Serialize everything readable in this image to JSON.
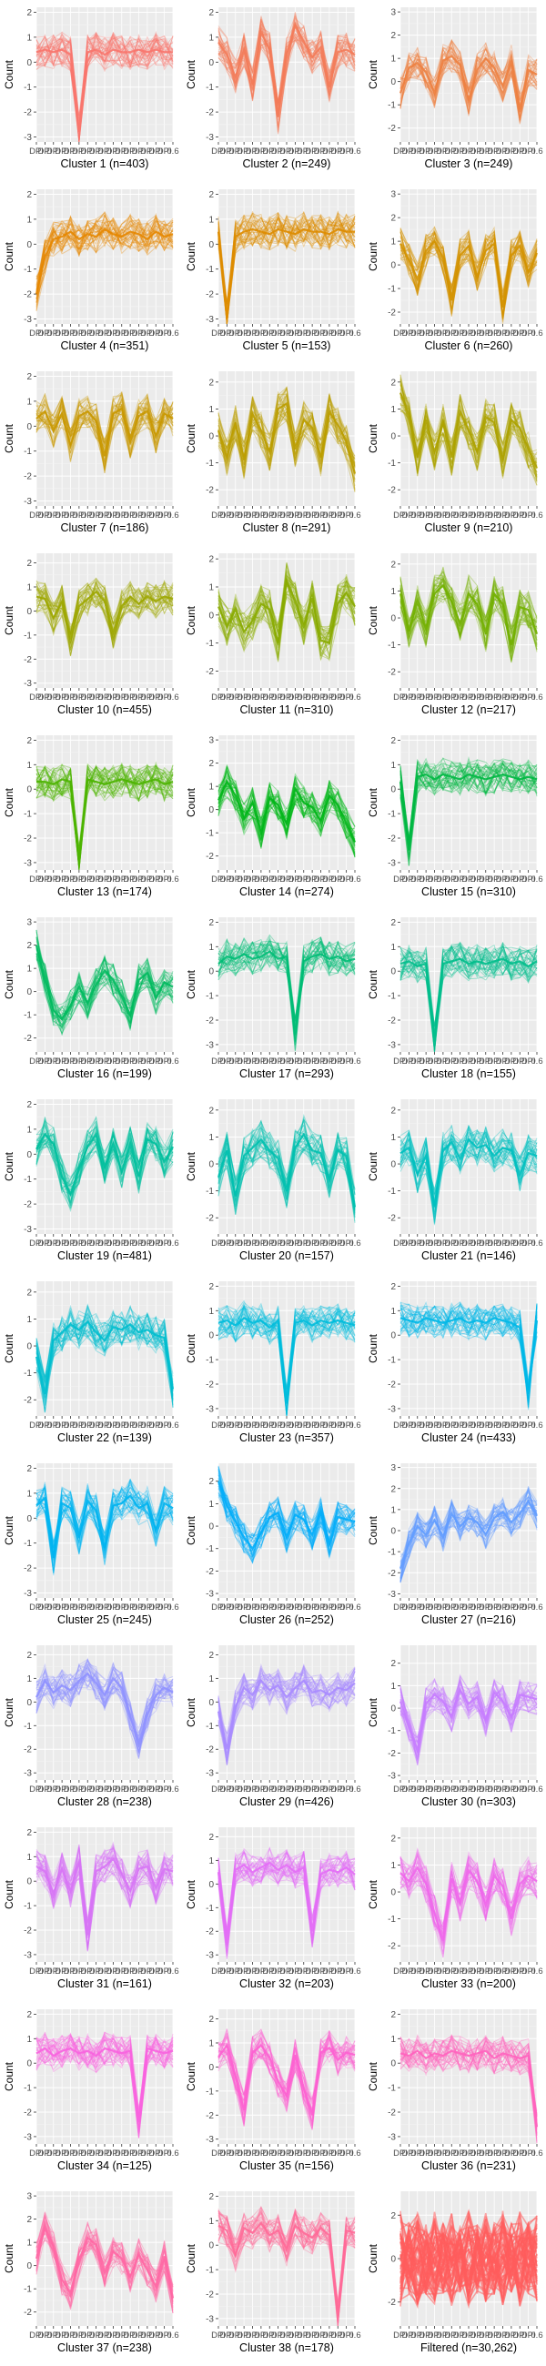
{
  "ylabel": "Count",
  "x_tick_labels": [
    "DPI",
    "DPI",
    "DPI",
    "DPI",
    "DPI",
    "DPI",
    "DPI",
    "DPI",
    "DPI",
    "DPI",
    "DPI",
    "DPI",
    "DPI",
    "DPI",
    "DPI",
    "DPI",
    "0.6"
  ],
  "chart_data": [
    {
      "type": "line",
      "title": "Cluster 1 (n=403)",
      "color": "#F8766D",
      "ylim": [
        -3.2,
        2.2
      ],
      "yticks": [
        -3,
        -2,
        -1,
        0,
        1,
        2
      ],
      "profile": [
        0.4,
        0.5,
        0.4,
        0.5,
        0.3,
        -2.8,
        0.4,
        0.5,
        0.3,
        0.5,
        0.4,
        0.4,
        0.5,
        0.4,
        0.5,
        0.4,
        0.4
      ]
    },
    {
      "type": "line",
      "title": "Cluster 2 (n=249)",
      "color": "#F37B59",
      "ylim": [
        -3.2,
        2.2
      ],
      "yticks": [
        -3,
        -2,
        -1,
        0,
        1,
        2
      ],
      "profile": [
        0.8,
        0.3,
        -0.6,
        0.5,
        -0.9,
        1.2,
        0.5,
        -2.2,
        0.3,
        1.5,
        0.8,
        0.2,
        0.6,
        -1.0,
        0.4,
        0.5,
        0.3
      ]
    },
    {
      "type": "line",
      "title": "Cluster 3 (n=249)",
      "color": "#ED8141",
      "ylim": [
        -2.6,
        3.2
      ],
      "yticks": [
        -2,
        -1,
        0,
        1,
        2,
        3
      ],
      "profile": [
        -0.5,
        0.6,
        0.8,
        0.4,
        -0.5,
        0.9,
        1.1,
        0.7,
        -0.8,
        0.5,
        1.0,
        0.6,
        -0.2,
        0.9,
        -1.2,
        0.5,
        0.3
      ]
    },
    {
      "type": "line",
      "title": "Cluster 4 (n=351)",
      "color": "#E58700",
      "ylim": [
        -3.2,
        2.2
      ],
      "yticks": [
        -3,
        -2,
        -1,
        0,
        1,
        2
      ],
      "profile": [
        -2.0,
        -0.5,
        0.2,
        0.3,
        0.5,
        0.2,
        0.4,
        0.3,
        0.6,
        0.4,
        0.3,
        0.5,
        0.4,
        0.2,
        0.5,
        0.3,
        0.4
      ]
    },
    {
      "type": "line",
      "title": "Cluster 5 (n=153)",
      "color": "#DE8C00",
      "ylim": [
        -3.2,
        2.2
      ],
      "yticks": [
        -3,
        -2,
        -1,
        0,
        1,
        2
      ],
      "profile": [
        0.5,
        -3.0,
        0.3,
        0.5,
        0.6,
        0.5,
        0.4,
        0.6,
        0.5,
        0.4,
        0.6,
        0.5,
        0.5,
        0.4,
        0.6,
        0.5,
        0.5
      ]
    },
    {
      "type": "line",
      "title": "Cluster 6 (n=260)",
      "color": "#D39200",
      "ylim": [
        -2.5,
        3.2
      ],
      "yticks": [
        -2,
        -1,
        0,
        1,
        2,
        3
      ],
      "profile": [
        0.9,
        0.2,
        -0.6,
        0.6,
        1.0,
        0.3,
        -1.5,
        0.4,
        0.8,
        -0.5,
        0.6,
        0.9,
        -1.8,
        0.4,
        0.8,
        -0.3,
        0.5
      ]
    },
    {
      "type": "line",
      "title": "Cluster 7 (n=186)",
      "color": "#C99800",
      "ylim": [
        -3.2,
        2.2
      ],
      "yticks": [
        -3,
        -2,
        -1,
        0,
        1,
        2
      ],
      "profile": [
        0.3,
        0.6,
        -0.2,
        0.5,
        -0.8,
        0.4,
        0.6,
        0.2,
        -1.2,
        0.5,
        0.7,
        -0.6,
        0.4,
        0.6,
        -0.4,
        0.5,
        0.3
      ]
    },
    {
      "type": "line",
      "title": "Cluster 8 (n=291)",
      "color": "#BB9D00",
      "ylim": [
        -2.6,
        2.4
      ],
      "yticks": [
        -2,
        -1,
        0,
        1,
        2
      ],
      "profile": [
        0.2,
        -0.8,
        0.5,
        -0.9,
        0.8,
        0.2,
        -0.6,
        1.0,
        1.2,
        -0.5,
        0.6,
        0.3,
        -0.8,
        0.9,
        0.4,
        -0.2,
        -1.4
      ]
    },
    {
      "type": "line",
      "title": "Cluster 9 (n=210)",
      "color": "#ADA200",
      "ylim": [
        -2.6,
        2.4
      ],
      "yticks": [
        -2,
        -1,
        0,
        1,
        2
      ],
      "profile": [
        1.6,
        0.8,
        -0.8,
        0.6,
        -0.6,
        0.5,
        -0.8,
        0.9,
        0.2,
        -0.6,
        0.7,
        0.5,
        -0.9,
        0.6,
        0.3,
        -0.5,
        -1.2
      ]
    },
    {
      "type": "line",
      "title": "Cluster 10 (n=455)",
      "color": "#9DA700",
      "ylim": [
        -3.2,
        2.4
      ],
      "yticks": [
        -3,
        -2,
        -1,
        0,
        1,
        2
      ],
      "profile": [
        0.6,
        0.5,
        -0.3,
        0.4,
        -1.2,
        0.2,
        0.5,
        0.8,
        0.4,
        -0.9,
        0.2,
        0.6,
        0.3,
        0.6,
        0.4,
        0.6,
        0.5
      ]
    },
    {
      "type": "line",
      "title": "Cluster 11 (n=310)",
      "color": "#8AAB00",
      "ylim": [
        -2.6,
        2.2
      ],
      "yticks": [
        -2,
        -1,
        0,
        1,
        2
      ],
      "profile": [
        0.3,
        -0.4,
        0.2,
        -0.6,
        -0.2,
        0.4,
        0.2,
        -1.0,
        1.2,
        0.5,
        -0.4,
        0.6,
        -0.9,
        -1.0,
        0.4,
        0.8,
        0.3
      ]
    },
    {
      "type": "line",
      "title": "Cluster 12 (n=217)",
      "color": "#72B000",
      "ylim": [
        -2.6,
        2.4
      ],
      "yticks": [
        -2,
        -1,
        0,
        1,
        2
      ],
      "profile": [
        0.9,
        -0.5,
        0.6,
        -0.4,
        0.9,
        1.2,
        0.6,
        -0.2,
        0.9,
        0.5,
        -0.6,
        0.9,
        0.5,
        -1.0,
        0.4,
        0.3,
        -0.6
      ]
    },
    {
      "type": "line",
      "title": "Cluster 13 (n=174)",
      "color": "#4DB400",
      "ylim": [
        -3.3,
        2.2
      ],
      "yticks": [
        -3,
        -2,
        -1,
        0,
        1,
        2
      ],
      "profile": [
        0.3,
        0.3,
        0.2,
        0.4,
        0.3,
        -3.0,
        0.4,
        0.3,
        0.2,
        0.3,
        0.4,
        0.3,
        0.2,
        0.3,
        0.4,
        0.2,
        0.3
      ]
    },
    {
      "type": "line",
      "title": "Cluster 14 (n=274)",
      "color": "#00B618",
      "ylim": [
        -2.6,
        3.2
      ],
      "yticks": [
        -2,
        -1,
        0,
        1,
        2,
        3
      ],
      "profile": [
        0.4,
        1.2,
        0.6,
        -0.4,
        0.3,
        -1.0,
        0.5,
        0.2,
        -0.6,
        0.9,
        0.3,
        0.1,
        -0.5,
        0.6,
        0.2,
        -0.6,
        -1.4
      ]
    },
    {
      "type": "line",
      "title": "Cluster 15 (n=310)",
      "color": "#00B843",
      "ylim": [
        -3.3,
        2.2
      ],
      "yticks": [
        -3,
        -2,
        -1,
        0,
        1,
        2
      ],
      "profile": [
        0.3,
        -2.5,
        0.5,
        0.6,
        0.4,
        0.6,
        0.5,
        0.4,
        0.6,
        0.5,
        0.4,
        0.5,
        0.6,
        0.5,
        0.4,
        0.5,
        0.4
      ]
    },
    {
      "type": "line",
      "title": "Cluster 16 (n=199)",
      "color": "#00BA5E",
      "ylim": [
        -2.6,
        3.2
      ],
      "yticks": [
        -2,
        -1,
        0,
        1,
        2,
        3
      ],
      "profile": [
        2.0,
        0.5,
        -0.8,
        -1.2,
        -0.6,
        0.2,
        -0.5,
        0.3,
        0.9,
        0.5,
        -0.2,
        -1.0,
        0.5,
        0.8,
        -0.3,
        0.4,
        0.2
      ]
    },
    {
      "type": "line",
      "title": "Cluster 17 (n=293)",
      "color": "#00BC76",
      "ylim": [
        -3.3,
        2.2
      ],
      "yticks": [
        -3,
        -2,
        -1,
        0,
        1,
        2
      ],
      "profile": [
        0.3,
        0.6,
        0.5,
        0.7,
        0.5,
        0.6,
        0.8,
        0.5,
        0.6,
        -2.6,
        0.4,
        0.6,
        0.7,
        0.5,
        0.6,
        0.4,
        0.5
      ]
    },
    {
      "type": "line",
      "title": "Cluster 18 (n=155)",
      "color": "#00BE8B",
      "ylim": [
        -3.3,
        2.2
      ],
      "yticks": [
        -3,
        -2,
        -1,
        0,
        1,
        2
      ],
      "profile": [
        0.3,
        0.4,
        0.2,
        0.3,
        -2.9,
        0.3,
        0.4,
        0.5,
        0.3,
        0.4,
        0.3,
        0.4,
        0.5,
        0.3,
        0.4,
        0.2,
        0.4
      ]
    },
    {
      "type": "line",
      "title": "Cluster 19 (n=481)",
      "color": "#00BF9D",
      "ylim": [
        -3.2,
        2.2
      ],
      "yticks": [
        -3,
        -2,
        -1,
        0,
        1,
        2
      ],
      "profile": [
        0.2,
        0.8,
        0.4,
        -0.9,
        -1.6,
        -0.6,
        0.3,
        0.8,
        -0.5,
        0.4,
        -0.7,
        0.4,
        -0.9,
        0.6,
        0.4,
        -0.3,
        0.3
      ]
    },
    {
      "type": "line",
      "title": "Cluster 20 (n=157)",
      "color": "#00C0AF",
      "ylim": [
        -2.6,
        2.4
      ],
      "yticks": [
        -2,
        -1,
        0,
        1,
        2
      ],
      "profile": [
        -0.5,
        0.5,
        -1.2,
        0.3,
        0.6,
        0.9,
        0.5,
        0.2,
        -1.0,
        0.6,
        1.1,
        0.5,
        0.4,
        -0.6,
        0.5,
        0.3,
        -1.6
      ]
    },
    {
      "type": "line",
      "title": "Cluster 21 (n=146)",
      "color": "#00C0BF",
      "ylim": [
        -2.6,
        2.4
      ],
      "yticks": [
        -2,
        -1,
        0,
        1,
        2
      ],
      "profile": [
        0.4,
        0.6,
        -0.4,
        0.3,
        -1.6,
        0.5,
        0.8,
        0.2,
        0.9,
        0.6,
        0.7,
        0.3,
        0.6,
        0.5,
        -0.4,
        0.4,
        0.3
      ]
    },
    {
      "type": "line",
      "title": "Cluster 22 (n=139)",
      "color": "#00BECE",
      "ylim": [
        -2.6,
        2.4
      ],
      "yticks": [
        -2,
        -1,
        0,
        1,
        2
      ],
      "profile": [
        -0.4,
        -1.8,
        0.2,
        0.5,
        0.8,
        0.6,
        0.9,
        0.5,
        0.2,
        0.7,
        0.6,
        0.8,
        0.5,
        0.6,
        0.4,
        0.3,
        -1.6
      ]
    },
    {
      "type": "line",
      "title": "Cluster 23 (n=357)",
      "color": "#00BCDC",
      "ylim": [
        -3.3,
        2.2
      ],
      "yticks": [
        -3,
        -2,
        -1,
        0,
        1,
        2
      ],
      "profile": [
        0.5,
        0.6,
        0.4,
        0.7,
        0.5,
        0.6,
        0.3,
        0.6,
        -2.8,
        0.5,
        0.6,
        0.4,
        0.6,
        0.5,
        0.6,
        0.5,
        0.4
      ]
    },
    {
      "type": "line",
      "title": "Cluster 24 (n=433)",
      "color": "#00B8E7",
      "ylim": [
        -3.3,
        2.2
      ],
      "yticks": [
        -3,
        -2,
        -1,
        0,
        1,
        2
      ],
      "profile": [
        0.7,
        0.6,
        0.5,
        0.7,
        0.6,
        0.5,
        0.6,
        0.7,
        0.5,
        0.6,
        0.5,
        0.7,
        0.6,
        0.5,
        0.3,
        -2.4,
        0.6
      ]
    },
    {
      "type": "line",
      "title": "Cluster 25 (n=245)",
      "color": "#00B4F0",
      "ylim": [
        -3.2,
        2.2
      ],
      "yticks": [
        -3,
        -2,
        -1,
        0,
        1,
        2
      ],
      "profile": [
        0.5,
        0.8,
        -1.6,
        0.6,
        0.4,
        -0.8,
        0.7,
        0.3,
        -1.2,
        0.5,
        0.6,
        0.9,
        0.4,
        0.6,
        -0.5,
        0.6,
        0.4
      ]
    },
    {
      "type": "line",
      "title": "Cluster 26 (n=252)",
      "color": "#00ADFA",
      "ylim": [
        -3.2,
        2.8
      ],
      "yticks": [
        -3,
        -2,
        -1,
        0,
        1,
        2
      ],
      "profile": [
        2.0,
        0.9,
        0.2,
        -0.5,
        -1.0,
        -0.3,
        0.4,
        0.6,
        -0.5,
        0.5,
        0.3,
        -0.4,
        0.6,
        -0.8,
        0.4,
        0.3,
        0.2
      ]
    },
    {
      "type": "line",
      "title": "Cluster 27 (n=216)",
      "color": "#619CFF",
      "ylim": [
        -3.2,
        3.2
      ],
      "yticks": [
        -3,
        -2,
        -1,
        0,
        1,
        2,
        3
      ],
      "profile": [
        -1.8,
        -0.6,
        0.2,
        -0.2,
        0.5,
        -0.3,
        0.8,
        0.2,
        0.6,
        0.4,
        -0.2,
        0.6,
        0.9,
        0.4,
        0.8,
        1.4,
        0.7
      ]
    },
    {
      "type": "line",
      "title": "Cluster 28 (n=238)",
      "color": "#8F91FF",
      "ylim": [
        -3.3,
        2.4
      ],
      "yticks": [
        -3,
        -2,
        -1,
        0,
        1,
        2
      ],
      "profile": [
        0.2,
        0.9,
        0.4,
        0.7,
        0.5,
        0.9,
        1.2,
        0.8,
        0.3,
        1.0,
        0.6,
        -0.6,
        -1.8,
        -0.5,
        0.3,
        0.6,
        0.4
      ]
    },
    {
      "type": "line",
      "title": "Cluster 29 (n=426)",
      "color": "#A98BFF",
      "ylim": [
        -3.3,
        2.4
      ],
      "yticks": [
        -3,
        -2,
        -1,
        0,
        1,
        2
      ],
      "profile": [
        -0.4,
        -2.0,
        -0.2,
        0.6,
        0.3,
        0.9,
        0.5,
        0.7,
        0.2,
        0.6,
        0.9,
        0.4,
        0.5,
        0.3,
        0.6,
        0.5,
        0.8
      ]
    },
    {
      "type": "line",
      "title": "Cluster 30 (n=303)",
      "color": "#C77CFF",
      "ylim": [
        -3.2,
        2.8
      ],
      "yticks": [
        -3,
        -2,
        -1,
        0,
        1,
        2
      ],
      "profile": [
        0.3,
        -0.8,
        -1.9,
        0.2,
        0.6,
        0.3,
        -0.4,
        0.8,
        0.2,
        0.5,
        -0.6,
        0.7,
        0.3,
        -0.4,
        0.6,
        0.5,
        0.4
      ]
    },
    {
      "type": "line",
      "title": "Cluster 31 (n=161)",
      "color": "#D774F5",
      "ylim": [
        -3.3,
        2.2
      ],
      "yticks": [
        -3,
        -2,
        -1,
        0,
        1,
        2
      ],
      "profile": [
        0.6,
        0.4,
        -0.5,
        0.5,
        -0.4,
        0.8,
        -2.2,
        0.4,
        0.6,
        0.9,
        0.3,
        -0.4,
        0.5,
        0.6,
        -0.3,
        0.5,
        0.4
      ]
    },
    {
      "type": "line",
      "title": "Cluster 32 (n=203)",
      "color": "#E36EF6",
      "ylim": [
        -3.3,
        2.4
      ],
      "yticks": [
        -3,
        -2,
        -1,
        0,
        1,
        2
      ],
      "profile": [
        0.5,
        -2.5,
        0.6,
        0.8,
        0.5,
        0.7,
        0.9,
        0.6,
        0.8,
        0.5,
        0.7,
        -2.0,
        0.4,
        0.6,
        0.5,
        0.7,
        0.4
      ]
    },
    {
      "type": "line",
      "title": "Cluster 33 (n=200)",
      "color": "#EF67EB",
      "ylim": [
        -2.6,
        2.4
      ],
      "yticks": [
        -2,
        -1,
        0,
        1,
        2
      ],
      "profile": [
        0.7,
        0.4,
        0.9,
        0.3,
        -0.8,
        -1.8,
        0.5,
        -0.4,
        0.8,
        0.4,
        -0.5,
        0.6,
        0.2,
        -1.0,
        0.3,
        0.6,
        0.4
      ]
    },
    {
      "type": "line",
      "title": "Cluster 34 (n=125)",
      "color": "#F863DF",
      "ylim": [
        -3.3,
        2.2
      ],
      "yticks": [
        -3,
        -2,
        -1,
        0,
        1,
        2
      ],
      "profile": [
        0.4,
        0.6,
        0.3,
        0.5,
        0.6,
        0.4,
        0.5,
        0.3,
        0.6,
        0.5,
        0.4,
        0.5,
        -2.4,
        0.6,
        0.5,
        0.4,
        0.5
      ]
    },
    {
      "type": "line",
      "title": "Cluster 35 (n=156)",
      "color": "#FD61D1",
      "ylim": [
        -3.2,
        2.4
      ],
      "yticks": [
        -3,
        -2,
        -1,
        0,
        1,
        2
      ],
      "profile": [
        0.4,
        0.9,
        -0.4,
        -1.8,
        0.6,
        0.9,
        0.4,
        -0.6,
        -1.2,
        0.5,
        -0.9,
        -2.0,
        0.6,
        0.8,
        0.3,
        0.6,
        0.5
      ]
    },
    {
      "type": "line",
      "title": "Cluster 36 (n=231)",
      "color": "#FF63BE",
      "ylim": [
        -3.3,
        2.2
      ],
      "yticks": [
        -3,
        -2,
        -1,
        0,
        1,
        2
      ],
      "profile": [
        0.4,
        0.3,
        0.5,
        0.2,
        0.4,
        0.3,
        0.5,
        0.4,
        0.3,
        0.4,
        0.5,
        0.2,
        0.4,
        0.3,
        0.2,
        0.3,
        -2.6
      ]
    },
    {
      "type": "line",
      "title": "Cluster 37 (n=238)",
      "color": "#FF67A4",
      "ylim": [
        -2.6,
        3.2
      ],
      "yticks": [
        -2,
        -1,
        0,
        1,
        2,
        3
      ],
      "profile": [
        0.3,
        1.6,
        0.8,
        -0.6,
        -1.2,
        0.2,
        1.2,
        0.9,
        -0.3,
        0.6,
        0.3,
        -0.5,
        0.5,
        -0.2,
        -0.9,
        0.4,
        -1.4
      ]
    },
    {
      "type": "line",
      "title": "Cluster 38 (n=178)",
      "color": "#FF6A98",
      "ylim": [
        -3.3,
        2.2
      ],
      "yticks": [
        -3,
        -2,
        -1,
        0,
        1,
        2
      ],
      "profile": [
        0.8,
        0.6,
        -0.4,
        0.7,
        0.5,
        0.9,
        0.4,
        0.6,
        -0.2,
        0.8,
        0.5,
        0.3,
        0.7,
        0.4,
        -2.9,
        0.6,
        0.5
      ]
    },
    {
      "type": "line",
      "title": "Filtered (n=30,262)",
      "color": "#FF5C5C",
      "ylim": [
        -3.1,
        3.1
      ],
      "yticks": [
        -2,
        0,
        2
      ],
      "profile": [
        0,
        0,
        0,
        0,
        0,
        0,
        0,
        0,
        0,
        0,
        0,
        0,
        0,
        0,
        0,
        0,
        0
      ],
      "band": 2.2
    }
  ]
}
